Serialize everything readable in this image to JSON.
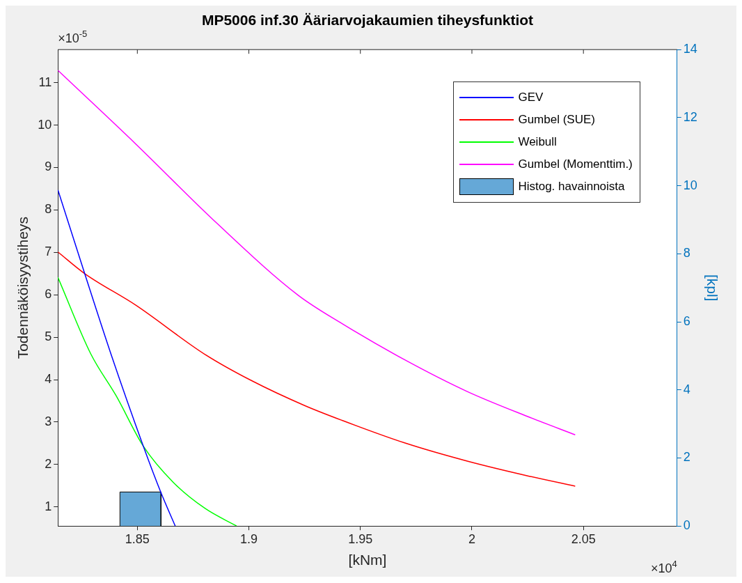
{
  "chart_data": {
    "type": "line",
    "title": "MP5006 inf.30 Ääriarvojakaumien tiheysfunktiot",
    "xlabel": "[kNm]",
    "ylabel": "Todennäköisyystiheys",
    "y2label": "[kpl]",
    "annotations": [
      "×10$^{-5}$",
      "×10$^{4}$"
    ],
    "series": [
      {
        "name": "GEV",
        "color": "#0000ff",
        "x": [
          1.8144,
          1.8264,
          1.8382,
          1.8527,
          1.8605,
          1.867
        ],
        "values": [
          8.47,
          6.5,
          4.6,
          2.43,
          1.35,
          0.55
        ]
      },
      {
        "name": "Gumbel (SUE)",
        "color": "#ff0000",
        "x": [
          1.8144,
          1.8264,
          1.8492,
          1.8802,
          1.9011,
          1.925,
          1.9418,
          1.9698,
          1.9979,
          2.026,
          2.0463
        ],
        "values": [
          7.01,
          6.5,
          5.76,
          4.6,
          3.98,
          3.39,
          3.04,
          2.51,
          2.08,
          1.72,
          1.49
        ]
      },
      {
        "name": "Weibull",
        "color": "#00ff00",
        "x": [
          1.8144,
          1.8292,
          1.8405,
          1.8527,
          1.8661,
          1.8805,
          1.8945
        ],
        "values": [
          6.41,
          4.6,
          3.62,
          2.43,
          1.58,
          0.96,
          0.55
        ]
      },
      {
        "name": "Gumbel (Momenttim.)",
        "color": "#ff00ff",
        "x": [
          1.8144,
          1.8492,
          1.8856,
          1.9221,
          1.9418,
          1.9698,
          1.9979,
          2.026,
          2.0463
        ],
        "values": [
          11.29,
          9.56,
          7.69,
          5.99,
          5.32,
          4.47,
          3.72,
          3.11,
          2.7
        ]
      },
      {
        "name": "Histog. havainnoista",
        "type": "histogram",
        "axis": "y2",
        "color": "#65a8d7",
        "bins": [
          1.8422,
          1.8606
        ],
        "values": [
          1
        ]
      }
    ],
    "xlim": [
      1.8144,
      2.092
    ],
    "xticks": [
      1.85,
      1.9,
      1.95,
      2,
      2.05
    ],
    "ylim": [
      0.55,
      11.78
    ],
    "yticks": [
      1,
      2,
      3,
      4,
      5,
      6,
      7,
      8,
      9,
      10,
      11
    ],
    "y2lim": [
      0,
      14
    ],
    "y2ticks": [
      0,
      2,
      4,
      6,
      8,
      10,
      12,
      14
    ],
    "grid": false,
    "legend": "top right",
    "line_style": "solid"
  }
}
